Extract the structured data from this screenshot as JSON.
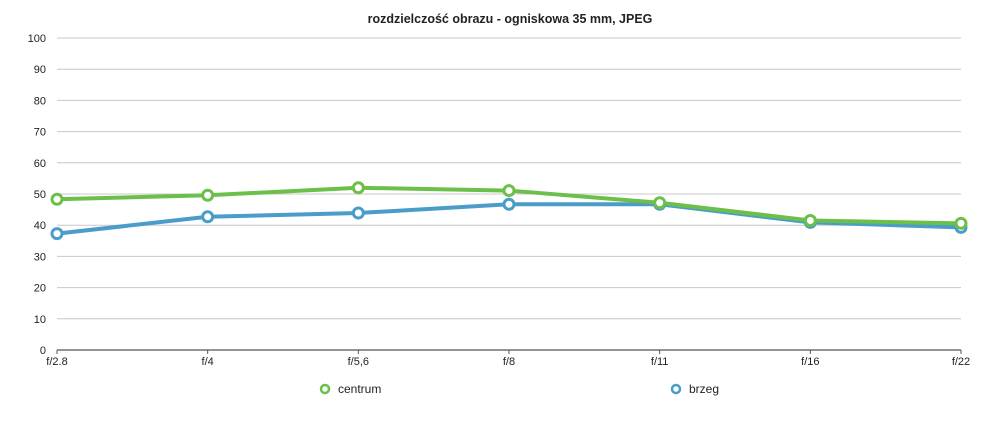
{
  "chart_data": {
    "type": "line",
    "title": "rozdzielczość obrazu - ogniskowa 35 mm, JPEG",
    "xlabel": "",
    "ylabel": "",
    "categories": [
      "f/2.8",
      "f/4",
      "f/5,6",
      "f/8",
      "f/11",
      "f/16",
      "f/22"
    ],
    "ylim": [
      0,
      100
    ],
    "yticks": [
      0,
      10,
      20,
      30,
      40,
      50,
      60,
      70,
      80,
      90,
      100
    ],
    "grid": true,
    "legend": "bottom",
    "series": [
      {
        "name": "centrum",
        "color": "#6cc04a",
        "values": [
          48.3,
          49.6,
          52.0,
          51.1,
          47.2,
          41.5,
          40.6
        ]
      },
      {
        "name": "brzeg",
        "color": "#4a9cc9",
        "values": [
          37.3,
          42.7,
          43.9,
          46.7,
          46.7,
          40.9,
          39.3
        ]
      }
    ]
  }
}
